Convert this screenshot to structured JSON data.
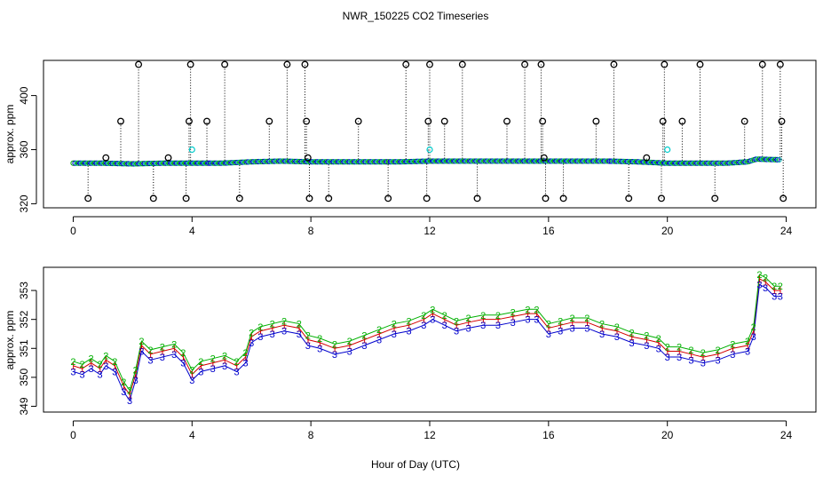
{
  "chart_data": {
    "title": "NWR_150225  CO2 Timeseries",
    "xlabel": "Hour of Day (UTC)",
    "panels": [
      {
        "id": "top",
        "type": "scatter",
        "ylabel": "approx. ppm",
        "xlim": [
          -1,
          25
        ],
        "ylim": [
          317,
          426
        ],
        "xticks": [
          0,
          4,
          8,
          12,
          16,
          20,
          24
        ],
        "yticks": [
          320,
          360,
          400
        ],
        "baseline": [
          [
            0,
            350
          ],
          [
            1,
            350
          ],
          [
            2,
            349.5
          ],
          [
            3,
            350
          ],
          [
            4,
            350
          ],
          [
            5,
            350
          ],
          [
            6,
            351
          ],
          [
            7,
            351.5
          ],
          [
            8,
            351
          ],
          [
            9,
            351
          ],
          [
            10,
            351
          ],
          [
            11,
            351
          ],
          [
            12,
            351.5
          ],
          [
            13,
            351.5
          ],
          [
            14,
            351.5
          ],
          [
            15,
            351.5
          ],
          [
            16,
            351.5
          ],
          [
            17,
            351.5
          ],
          [
            18,
            351.5
          ],
          [
            19,
            351
          ],
          [
            20,
            350
          ],
          [
            21,
            350
          ],
          [
            22,
            350
          ],
          [
            22.7,
            351
          ],
          [
            23,
            353
          ],
          [
            23.8,
            352.5
          ]
        ],
        "spikes": [
          {
            "x": 0.5,
            "y": 324
          },
          {
            "x": 1.1,
            "y": 354
          },
          {
            "x": 1.6,
            "y": 381
          },
          {
            "x": 2.2,
            "y": 423
          },
          {
            "x": 2.7,
            "y": 324
          },
          {
            "x": 3.2,
            "y": 354
          },
          {
            "x": 3.8,
            "y": 324
          },
          {
            "x": 3.9,
            "y": 381
          },
          {
            "x": 3.95,
            "y": 423
          },
          {
            "x": 4.5,
            "y": 381
          },
          {
            "x": 5.1,
            "y": 423
          },
          {
            "x": 5.6,
            "y": 324
          },
          {
            "x": 6.6,
            "y": 381
          },
          {
            "x": 7.2,
            "y": 423
          },
          {
            "x": 7.8,
            "y": 423
          },
          {
            "x": 7.85,
            "y": 381
          },
          {
            "x": 7.9,
            "y": 354
          },
          {
            "x": 7.95,
            "y": 324
          },
          {
            "x": 8.6,
            "y": 324
          },
          {
            "x": 9.6,
            "y": 381
          },
          {
            "x": 10.6,
            "y": 324
          },
          {
            "x": 11.2,
            "y": 423
          },
          {
            "x": 11.9,
            "y": 324
          },
          {
            "x": 11.95,
            "y": 381
          },
          {
            "x": 12.0,
            "y": 423
          },
          {
            "x": 12.5,
            "y": 381
          },
          {
            "x": 13.1,
            "y": 423
          },
          {
            "x": 13.6,
            "y": 324
          },
          {
            "x": 14.6,
            "y": 381
          },
          {
            "x": 15.2,
            "y": 423
          },
          {
            "x": 15.75,
            "y": 423
          },
          {
            "x": 15.8,
            "y": 381
          },
          {
            "x": 15.85,
            "y": 354
          },
          {
            "x": 15.9,
            "y": 324
          },
          {
            "x": 16.5,
            "y": 324
          },
          {
            "x": 17.6,
            "y": 381
          },
          {
            "x": 18.2,
            "y": 423
          },
          {
            "x": 18.7,
            "y": 324
          },
          {
            "x": 19.3,
            "y": 354
          },
          {
            "x": 19.8,
            "y": 324
          },
          {
            "x": 19.85,
            "y": 381
          },
          {
            "x": 19.9,
            "y": 423
          },
          {
            "x": 20.5,
            "y": 381
          },
          {
            "x": 21.1,
            "y": 423
          },
          {
            "x": 21.6,
            "y": 324
          },
          {
            "x": 22.6,
            "y": 381
          },
          {
            "x": 23.2,
            "y": 423
          },
          {
            "x": 23.8,
            "y": 423
          },
          {
            "x": 23.85,
            "y": 381
          },
          {
            "x": 23.9,
            "y": 324
          }
        ],
        "cyan_points": [
          {
            "x": 4.0,
            "y": 360
          },
          {
            "x": 12.0,
            "y": 360
          },
          {
            "x": 20.0,
            "y": 360
          }
        ]
      },
      {
        "id": "bottom",
        "type": "line",
        "ylabel": "approx. ppm",
        "xlim": [
          -1,
          25
        ],
        "ylim": [
          348.8,
          353.8
        ],
        "xticks": [
          0,
          4,
          8,
          12,
          16,
          20,
          24
        ],
        "yticks": [
          349,
          350,
          351,
          352,
          353
        ],
        "series": [
          {
            "name": "1",
            "color": "#d40000"
          },
          {
            "name": "2",
            "color": "#00b000"
          },
          {
            "name": "3",
            "color": "#0000cc"
          }
        ],
        "x": [
          0,
          0.3,
          0.6,
          0.9,
          1.1,
          1.4,
          1.7,
          1.9,
          2.1,
          2.3,
          2.6,
          3.0,
          3.4,
          3.7,
          4.0,
          4.3,
          4.7,
          5.1,
          5.5,
          5.8,
          6.0,
          6.3,
          6.7,
          7.1,
          7.6,
          7.9,
          8.3,
          8.8,
          9.3,
          9.8,
          10.3,
          10.8,
          11.3,
          11.8,
          12.1,
          12.5,
          12.9,
          13.3,
          13.8,
          14.3,
          14.8,
          15.3,
          15.6,
          16.0,
          16.4,
          16.8,
          17.3,
          17.8,
          18.3,
          18.8,
          19.3,
          19.7,
          20.0,
          20.4,
          20.8,
          21.2,
          21.7,
          22.2,
          22.7,
          22.9,
          23.1,
          23.3,
          23.6,
          23.8
        ],
        "values_1": [
          350.4,
          350.3,
          350.5,
          350.3,
          350.6,
          350.4,
          349.7,
          349.4,
          350.1,
          351.1,
          350.8,
          350.9,
          351.0,
          350.7,
          350.1,
          350.4,
          350.5,
          350.6,
          350.4,
          350.7,
          351.4,
          351.6,
          351.7,
          351.8,
          351.7,
          351.3,
          351.2,
          351.0,
          351.1,
          351.3,
          351.5,
          351.7,
          351.8,
          352.0,
          352.2,
          352.0,
          351.8,
          351.9,
          352.0,
          352.0,
          352.1,
          352.2,
          352.2,
          351.7,
          351.8,
          351.9,
          351.9,
          351.7,
          351.6,
          351.4,
          351.3,
          351.2,
          350.9,
          350.9,
          350.8,
          350.7,
          350.8,
          351.0,
          351.1,
          351.6,
          353.4,
          353.3,
          353.0,
          353.0
        ],
        "values_2": [
          350.55,
          350.45,
          350.65,
          350.45,
          350.75,
          350.55,
          349.85,
          349.55,
          350.25,
          351.25,
          350.95,
          351.05,
          351.15,
          350.85,
          350.25,
          350.55,
          350.65,
          350.75,
          350.55,
          350.85,
          351.55,
          351.75,
          351.85,
          351.95,
          351.85,
          351.45,
          351.35,
          351.15,
          351.25,
          351.45,
          351.65,
          351.85,
          351.95,
          352.15,
          352.35,
          352.15,
          351.95,
          352.05,
          352.15,
          352.15,
          352.25,
          352.35,
          352.35,
          351.85,
          351.95,
          352.05,
          352.05,
          351.85,
          351.75,
          351.55,
          351.45,
          351.35,
          351.05,
          351.05,
          350.95,
          350.85,
          350.95,
          351.15,
          351.25,
          351.75,
          353.55,
          353.45,
          353.15,
          353.15
        ],
        "values_3": [
          350.2,
          350.1,
          350.3,
          350.1,
          350.4,
          350.2,
          349.5,
          349.2,
          349.9,
          350.9,
          350.6,
          350.7,
          350.8,
          350.5,
          349.9,
          350.2,
          350.3,
          350.4,
          350.2,
          350.5,
          351.2,
          351.4,
          351.5,
          351.6,
          351.5,
          351.1,
          351.0,
          350.8,
          350.9,
          351.1,
          351.3,
          351.5,
          351.6,
          351.8,
          352.0,
          351.8,
          351.6,
          351.7,
          351.8,
          351.8,
          351.9,
          352.0,
          352.0,
          351.5,
          351.6,
          351.7,
          351.7,
          351.5,
          351.4,
          351.2,
          351.1,
          351.0,
          350.7,
          350.7,
          350.6,
          350.5,
          350.6,
          350.8,
          350.9,
          351.4,
          353.2,
          353.1,
          352.8,
          352.8
        ]
      }
    ]
  }
}
